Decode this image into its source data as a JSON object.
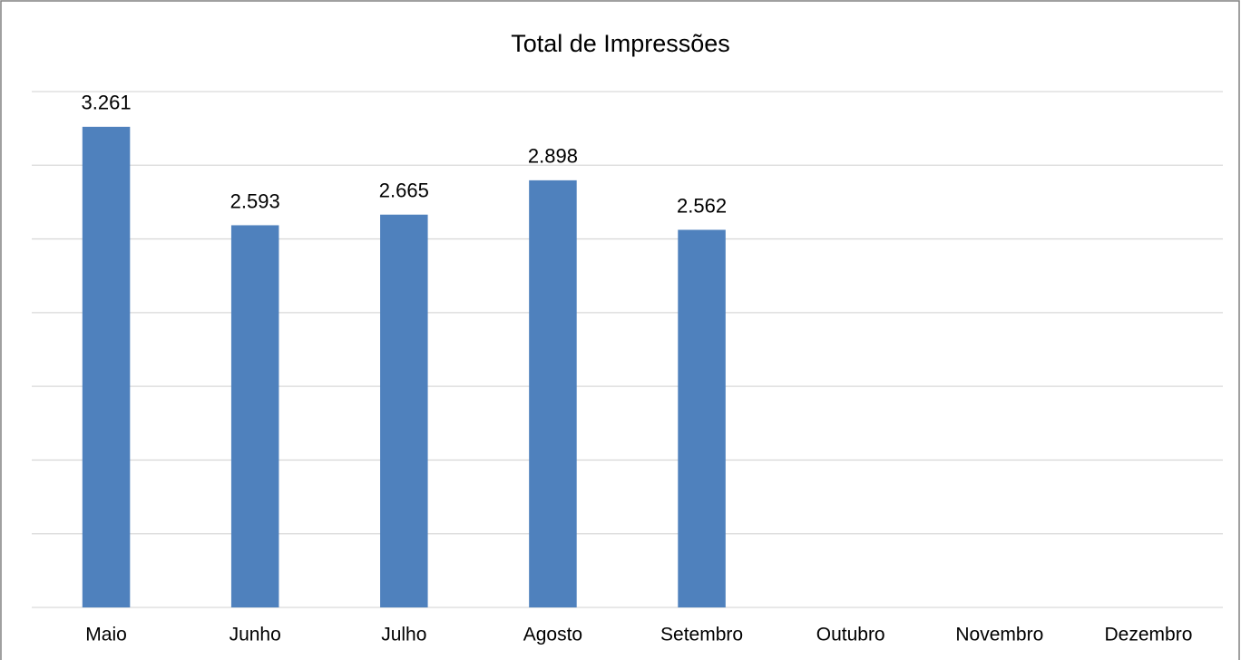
{
  "chart_data": {
    "type": "bar",
    "title": "Total de Impressões",
    "categories": [
      "Maio",
      "Junho",
      "Julho",
      "Agosto",
      "Setembro",
      "Outubro",
      "Novembro",
      "Dezembro"
    ],
    "values": [
      3261,
      2593,
      2665,
      2898,
      2562,
      null,
      null,
      null
    ],
    "value_labels": [
      "3.261",
      "2.593",
      "2.665",
      "2.898",
      "2.562",
      null,
      null,
      null
    ],
    "color": "#4f81bd",
    "ylim": [
      0,
      3500
    ],
    "yticks": [
      0,
      500,
      1000,
      1500,
      2000,
      2500,
      3000,
      3500
    ],
    "grid": true
  }
}
